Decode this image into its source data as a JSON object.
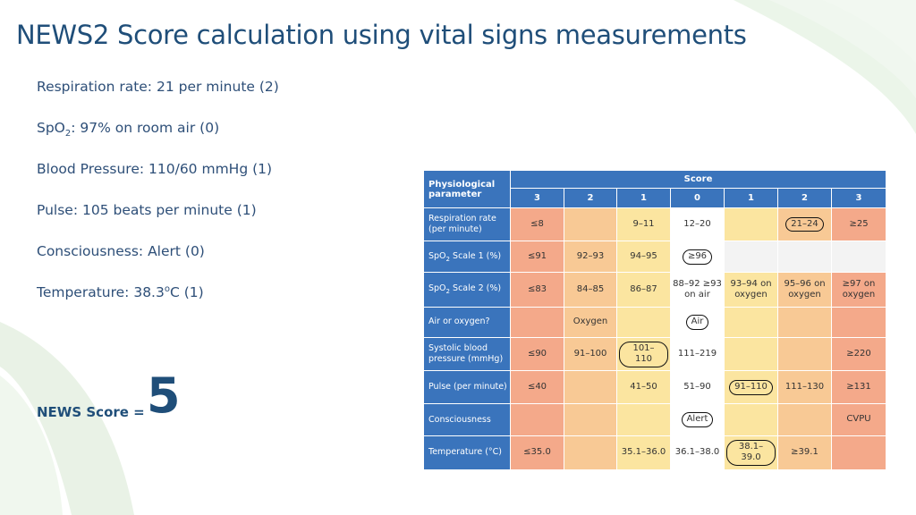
{
  "title": "NEWS2 Score calculation using vital signs measurements",
  "vitals": {
    "respiration": "Respiration rate: 21 per minute (2)",
    "spo2_prefix": "SpO",
    "spo2_sub": "2",
    "spo2_rest": ": 97% on room air (0)",
    "blood_pressure": "Blood Pressure: 110/60 mmHg (1)",
    "pulse": "Pulse: 105 beats per minute (1)",
    "consciousness": "Consciousness: Alert (0)",
    "temp_prefix": "Temperature: 38.3",
    "temp_sup": "o",
    "temp_rest": "C (1)"
  },
  "news_score": {
    "label": "NEWS Score =",
    "value": "5"
  },
  "table": {
    "param_header_line1": "Physiological",
    "param_header_line2": "parameter",
    "score_header": "Score",
    "score_columns": [
      "3",
      "2",
      "1",
      "0",
      "1",
      "2",
      "3"
    ],
    "rows": [
      {
        "param": "Respiration rate (per minute)",
        "cells": [
          "≤8",
          "",
          "9–11",
          "12–20",
          "",
          "21–24",
          "≥25"
        ]
      },
      {
        "param_prefix": "SpO",
        "param_sub": "2",
        "param_rest": " Scale 1 (%)",
        "cells": [
          "≤91",
          "92–93",
          "94–95",
          "≥96",
          "",
          "",
          ""
        ]
      },
      {
        "param_prefix": "SpO",
        "param_sub": "2",
        "param_rest": " Scale 2 (%)",
        "cells": [
          "≤83",
          "84–85",
          "86–87",
          "88–92 ≥93 on air",
          "93–94 on oxygen",
          "95–96 on oxygen",
          "≥97 on oxygen"
        ]
      },
      {
        "param": "Air or oxygen?",
        "cells": [
          "",
          "Oxygen",
          "",
          "Air",
          "",
          "",
          ""
        ]
      },
      {
        "param": "Systolic blood pressure (mmHg)",
        "cells": [
          "≤90",
          "91–100",
          "101–110",
          "111–219",
          "",
          "",
          "≥220"
        ]
      },
      {
        "param": "Pulse (per minute)",
        "cells": [
          "≤40",
          "",
          "41–50",
          "51–90",
          "91–110",
          "111–130",
          "≥131"
        ]
      },
      {
        "param": "Consciousness",
        "cells": [
          "",
          "",
          "",
          "Alert",
          "",
          "",
          "CVPU"
        ]
      },
      {
        "param": "Temperature (°C)",
        "cells": [
          "≤35.0",
          "",
          "35.1–36.0",
          "36.1–38.0",
          "38.1–39.0",
          "≥39.1",
          ""
        ]
      }
    ]
  }
}
